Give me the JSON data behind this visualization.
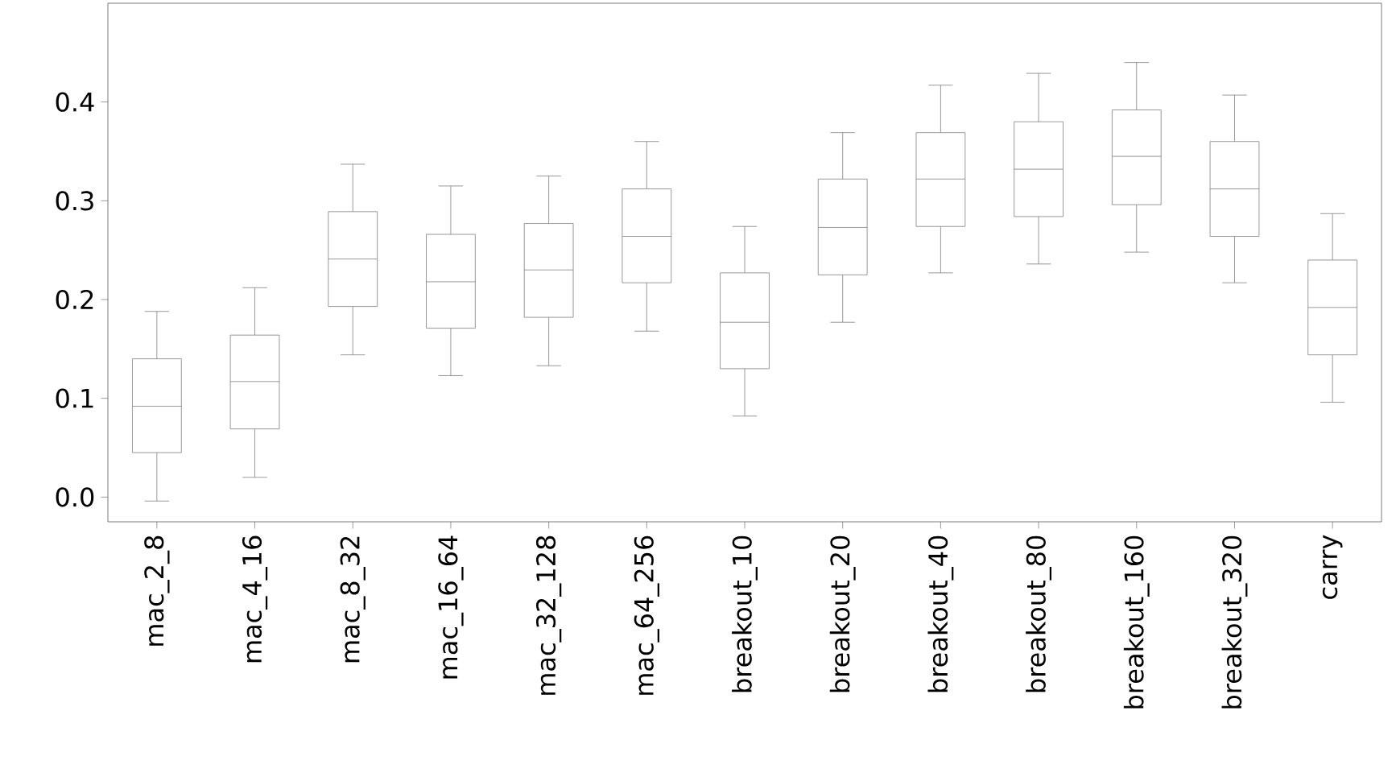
{
  "chart_data": {
    "type": "box",
    "categories": [
      "mac_2_8",
      "mac_4_16",
      "mac_8_32",
      "mac_16_64",
      "mac_32_128",
      "mac_64_256",
      "breakout_10",
      "breakout_20",
      "breakout_40",
      "breakout_80",
      "breakout_160",
      "breakout_320",
      "carry"
    ],
    "boxes": [
      {
        "low": -0.004,
        "q1": 0.045,
        "median": 0.092,
        "q3": 0.14,
        "high": 0.188
      },
      {
        "low": 0.02,
        "q1": 0.069,
        "median": 0.117,
        "q3": 0.164,
        "high": 0.212
      },
      {
        "low": 0.144,
        "q1": 0.193,
        "median": 0.241,
        "q3": 0.289,
        "high": 0.337
      },
      {
        "low": 0.123,
        "q1": 0.171,
        "median": 0.218,
        "q3": 0.266,
        "high": 0.315
      },
      {
        "low": 0.133,
        "q1": 0.182,
        "median": 0.23,
        "q3": 0.277,
        "high": 0.325
      },
      {
        "low": 0.168,
        "q1": 0.217,
        "median": 0.264,
        "q3": 0.312,
        "high": 0.36
      },
      {
        "low": 0.082,
        "q1": 0.13,
        "median": 0.177,
        "q3": 0.227,
        "high": 0.274
      },
      {
        "low": 0.177,
        "q1": 0.225,
        "median": 0.273,
        "q3": 0.322,
        "high": 0.369
      },
      {
        "low": 0.227,
        "q1": 0.274,
        "median": 0.322,
        "q3": 0.369,
        "high": 0.417
      },
      {
        "low": 0.236,
        "q1": 0.284,
        "median": 0.332,
        "q3": 0.38,
        "high": 0.429
      },
      {
        "low": 0.248,
        "q1": 0.296,
        "median": 0.345,
        "q3": 0.392,
        "high": 0.44
      },
      {
        "low": 0.217,
        "q1": 0.264,
        "median": 0.312,
        "q3": 0.36,
        "high": 0.407
      },
      {
        "low": 0.096,
        "q1": 0.144,
        "median": 0.192,
        "q3": 0.24,
        "high": 0.287
      }
    ],
    "color": "#7f7f7f",
    "ylim": [
      -0.025,
      0.5
    ],
    "yticks": [
      {
        "value": 0,
        "label": "0.0"
      },
      {
        "value": 0.1,
        "label": "0.1"
      },
      {
        "value": 0.2,
        "label": "0.2"
      },
      {
        "value": 0.3,
        "label": "0.3"
      },
      {
        "value": 0.4,
        "label": "0.4"
      }
    ]
  }
}
